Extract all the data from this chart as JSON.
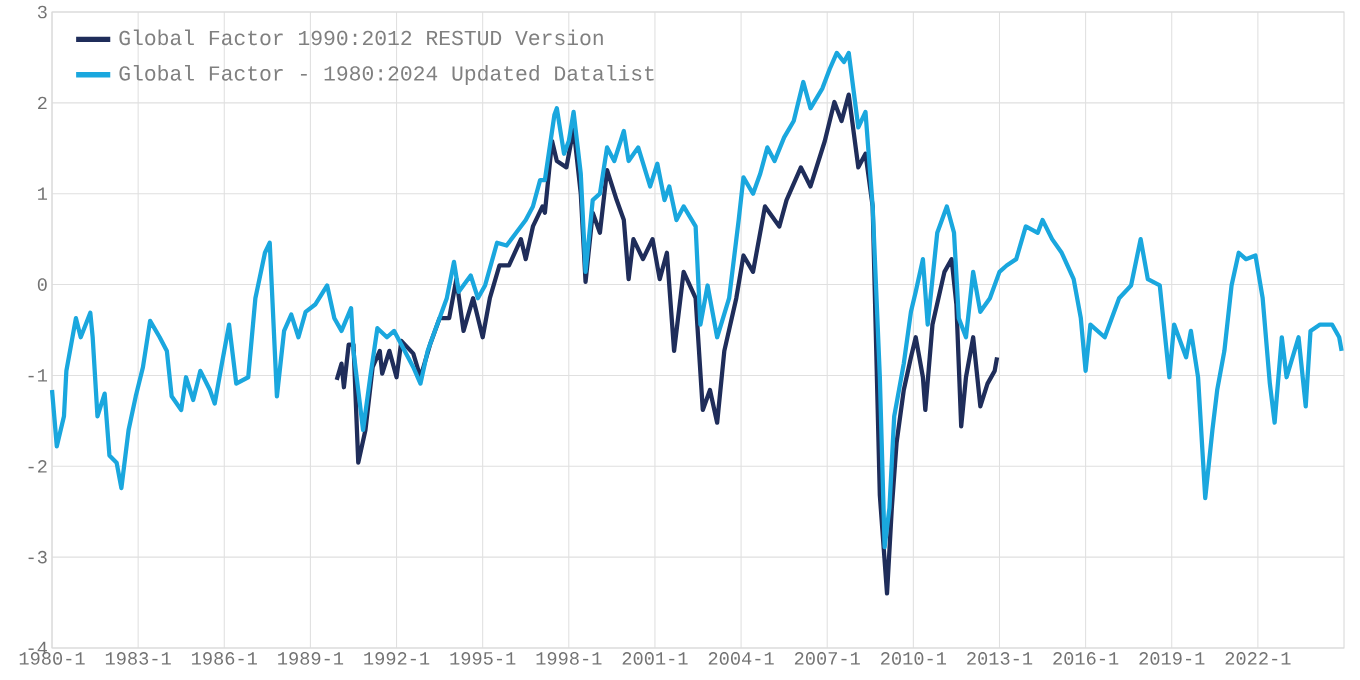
{
  "chart_data": {
    "type": "line",
    "xlim": [
      "1980-01",
      "2025-01"
    ],
    "ylim": [
      -4,
      3
    ],
    "xticks": [
      {
        "value": "1980-01",
        "label": "1980-1"
      },
      {
        "value": "1983-01",
        "label": "1983-1"
      },
      {
        "value": "1986-01",
        "label": "1986-1"
      },
      {
        "value": "1989-01",
        "label": "1989-1"
      },
      {
        "value": "1992-01",
        "label": "1992-1"
      },
      {
        "value": "1995-01",
        "label": "1995-1"
      },
      {
        "value": "1998-01",
        "label": "1998-1"
      },
      {
        "value": "2001-01",
        "label": "2001-1"
      },
      {
        "value": "2004-01",
        "label": "2004-1"
      },
      {
        "value": "2007-01",
        "label": "2007-1"
      },
      {
        "value": "2010-01",
        "label": "2010-1"
      },
      {
        "value": "2013-01",
        "label": "2013-1"
      },
      {
        "value": "2016-01",
        "label": "2016-1"
      },
      {
        "value": "2019-01",
        "label": "2019-1"
      },
      {
        "value": "2022-01",
        "label": "2022-1"
      }
    ],
    "yticks": [
      -4,
      -3,
      -2,
      -1,
      0,
      1,
      2,
      3
    ],
    "grid": true,
    "legend": "top left",
    "marker": "none",
    "line_style": "solid",
    "series": [
      {
        "name": "Global Factor 1990:2012 RESTUD Version",
        "color": "#1f2d5a",
        "x": [
          "1989-12",
          "1990-02",
          "1990-03",
          "1990-05",
          "1990-07",
          "1990-09",
          "1990-12",
          "1991-03",
          "1991-06",
          "1991-07",
          "1991-10",
          "1992-01",
          "1992-03",
          "1992-08",
          "1992-11",
          "1993-03",
          "1993-07",
          "1993-11",
          "1994-02",
          "1994-05",
          "1994-09",
          "1995-01",
          "1995-04",
          "1995-08",
          "1995-12",
          "1996-05",
          "1996-07",
          "1996-10",
          "1997-02",
          "1997-03",
          "1997-06",
          "1997-08",
          "1997-12",
          "1998-03",
          "1998-06",
          "1998-08",
          "1998-11",
          "1999-02",
          "1999-05",
          "1999-09",
          "1999-12",
          "2000-02",
          "2000-04",
          "2000-08",
          "2000-12",
          "2001-03",
          "2001-06",
          "2001-09",
          "2002-01",
          "2002-06",
          "2002-09",
          "2002-12",
          "2003-03",
          "2003-06",
          "2003-11",
          "2004-02",
          "2004-06",
          "2004-11",
          "2005-05",
          "2005-08",
          "2006-02",
          "2006-06",
          "2006-12",
          "2007-04",
          "2007-07",
          "2007-10",
          "2008-02",
          "2008-05",
          "2008-08",
          "2008-11",
          "2009-02",
          "2009-04",
          "2009-06",
          "2009-09",
          "2009-12",
          "2010-02",
          "2010-05",
          "2010-06",
          "2010-09",
          "2011-02",
          "2011-05",
          "2011-07",
          "2011-09",
          "2011-11",
          "2012-02",
          "2012-05",
          "2012-08",
          "2012-11",
          "2012-12"
        ],
        "values": [
          -1.05,
          -0.87,
          -1.13,
          -0.66,
          -0.66,
          -1.96,
          -1.6,
          -0.91,
          -0.73,
          -0.98,
          -0.73,
          -1.02,
          -0.62,
          -0.76,
          -1.02,
          -0.66,
          -0.37,
          -0.37,
          0.06,
          -0.51,
          -0.15,
          -0.58,
          -0.15,
          0.21,
          0.21,
          0.5,
          0.28,
          0.64,
          0.86,
          0.79,
          1.58,
          1.36,
          1.29,
          1.72,
          1.0,
          0.03,
          0.79,
          0.57,
          1.26,
          0.93,
          0.71,
          0.06,
          0.5,
          0.28,
          0.5,
          0.06,
          0.35,
          -0.73,
          0.14,
          -0.15,
          -1.38,
          -1.16,
          -1.52,
          -0.73,
          -0.15,
          0.32,
          0.14,
          0.86,
          0.64,
          0.93,
          1.29,
          1.08,
          1.58,
          2.01,
          1.8,
          2.09,
          1.29,
          1.44,
          0.86,
          -2.32,
          -3.4,
          -2.46,
          -1.74,
          -1.16,
          -0.8,
          -0.58,
          -1.02,
          -1.38,
          -0.44,
          0.14,
          0.28,
          -0.22,
          -1.56,
          -1.02,
          -0.58,
          -1.34,
          -1.09,
          -0.95,
          -0.8
        ]
      },
      {
        "name": "Global Factor - 1980:2024 Updated Datalist",
        "color": "#1aa7de",
        "x": [
          "1980-01",
          "1980-03",
          "1980-06",
          "1980-07",
          "1980-11",
          "1981-01",
          "1981-05",
          "1981-06",
          "1981-08",
          "1981-11",
          "1982-01",
          "1982-04",
          "1982-06",
          "1982-09",
          "1982-12",
          "1983-03",
          "1983-06",
          "1983-10",
          "1984-01",
          "1984-03",
          "1984-07",
          "1984-09",
          "1984-12",
          "1985-03",
          "1985-07",
          "1985-09",
          "1985-12",
          "1986-03",
          "1986-06",
          "1986-11",
          "1987-02",
          "1987-06",
          "1987-08",
          "1987-11",
          "1988-02",
          "1988-05",
          "1988-08",
          "1988-11",
          "1989-03",
          "1989-08",
          "1989-11",
          "1990-02",
          "1990-06",
          "1990-07",
          "1990-11",
          "1991-02",
          "1991-05",
          "1991-09",
          "1991-12",
          "1992-03",
          "1992-08",
          "1992-11",
          "1993-02",
          "1993-06",
          "1993-10",
          "1994-01",
          "1994-03",
          "1994-08",
          "1994-11",
          "1995-02",
          "1995-07",
          "1995-11",
          "1996-03",
          "1996-07",
          "1996-10",
          "1997-01",
          "1997-03",
          "1997-07",
          "1997-08",
          "1997-11",
          "1998-01",
          "1998-03",
          "1998-06",
          "1998-08",
          "1998-11",
          "1999-02",
          "1999-05",
          "1999-08",
          "1999-12",
          "2000-02",
          "2000-06",
          "2000-11",
          "2001-02",
          "2001-05",
          "2001-07",
          "2001-10",
          "2002-01",
          "2002-06",
          "2002-08",
          "2002-11",
          "2003-03",
          "2003-08",
          "2003-12",
          "2004-02",
          "2004-06",
          "2004-09",
          "2004-12",
          "2005-03",
          "2005-07",
          "2005-11",
          "2006-03",
          "2006-06",
          "2006-11",
          "2007-02",
          "2007-05",
          "2007-08",
          "2007-10",
          "2008-02",
          "2008-05",
          "2008-08",
          "2008-11",
          "2009-01",
          "2009-03",
          "2009-05",
          "2009-09",
          "2009-12",
          "2010-02",
          "2010-05",
          "2010-07",
          "2010-11",
          "2011-03",
          "2011-06",
          "2011-08",
          "2011-11",
          "2012-02",
          "2012-05",
          "2012-09",
          "2013-01",
          "2013-04",
          "2013-08",
          "2013-12",
          "2014-05",
          "2014-07",
          "2014-11",
          "2015-03",
          "2015-08",
          "2015-11",
          "2016-01",
          "2016-03",
          "2016-09",
          "2017-03",
          "2017-08",
          "2017-12",
          "2018-03",
          "2018-08",
          "2018-12",
          "2019-02",
          "2019-07",
          "2019-09",
          "2019-12",
          "2020-03",
          "2020-06",
          "2020-08",
          "2020-11",
          "2021-02",
          "2021-05",
          "2021-08",
          "2021-12",
          "2022-03",
          "2022-06",
          "2022-08",
          "2022-11",
          "2023-01",
          "2023-06",
          "2023-09",
          "2023-11",
          "2024-03",
          "2024-08",
          "2024-11",
          "2024-12"
        ],
        "values": [
          -1.16,
          -1.78,
          -1.45,
          -0.95,
          -0.37,
          -0.58,
          -0.31,
          -0.58,
          -1.45,
          -1.2,
          -1.88,
          -1.96,
          -2.24,
          -1.6,
          -1.23,
          -0.91,
          -0.4,
          -0.58,
          -0.73,
          -1.23,
          -1.38,
          -1.02,
          -1.27,
          -0.95,
          -1.16,
          -1.31,
          -0.87,
          -0.44,
          -1.09,
          -1.02,
          -0.15,
          0.35,
          0.46,
          -1.23,
          -0.51,
          -0.33,
          -0.58,
          -0.3,
          -0.22,
          -0.01,
          -0.37,
          -0.51,
          -0.26,
          -0.73,
          -1.6,
          -1.02,
          -0.48,
          -0.58,
          -0.51,
          -0.66,
          -0.91,
          -1.09,
          -0.73,
          -0.44,
          -0.15,
          0.25,
          -0.08,
          0.1,
          -0.15,
          -0.01,
          0.46,
          0.43,
          0.57,
          0.71,
          0.86,
          1.15,
          1.15,
          1.87,
          1.94,
          1.44,
          1.58,
          1.9,
          1.22,
          0.14,
          0.93,
          1.0,
          1.51,
          1.36,
          1.69,
          1.36,
          1.51,
          1.08,
          1.33,
          0.93,
          1.08,
          0.71,
          0.86,
          0.64,
          -0.44,
          -0.01,
          -0.58,
          -0.15,
          0.71,
          1.18,
          1.0,
          1.22,
          1.51,
          1.36,
          1.62,
          1.8,
          2.23,
          1.94,
          2.16,
          2.37,
          2.55,
          2.45,
          2.55,
          1.73,
          1.9,
          0.86,
          -1.02,
          -2.89,
          -2.46,
          -1.45,
          -0.87,
          -0.3,
          -0.08,
          0.28,
          -0.44,
          0.57,
          0.86,
          0.57,
          -0.37,
          -0.58,
          0.14,
          -0.3,
          -0.15,
          0.14,
          0.21,
          0.28,
          0.64,
          0.57,
          0.71,
          0.5,
          0.35,
          0.06,
          -0.37,
          -0.95,
          -0.44,
          -0.58,
          -0.15,
          -0.01,
          0.5,
          0.06,
          -0.01,
          -1.02,
          -0.44,
          -0.8,
          -0.51,
          -1.02,
          -2.35,
          -1.6,
          -1.16,
          -0.73,
          -0.01,
          0.35,
          0.28,
          0.32,
          -0.15,
          -1.09,
          -1.52,
          -0.58,
          -1.02,
          -0.58,
          -1.34,
          -0.51,
          -0.44,
          -0.44,
          -0.58,
          -0.73
        ]
      }
    ]
  }
}
